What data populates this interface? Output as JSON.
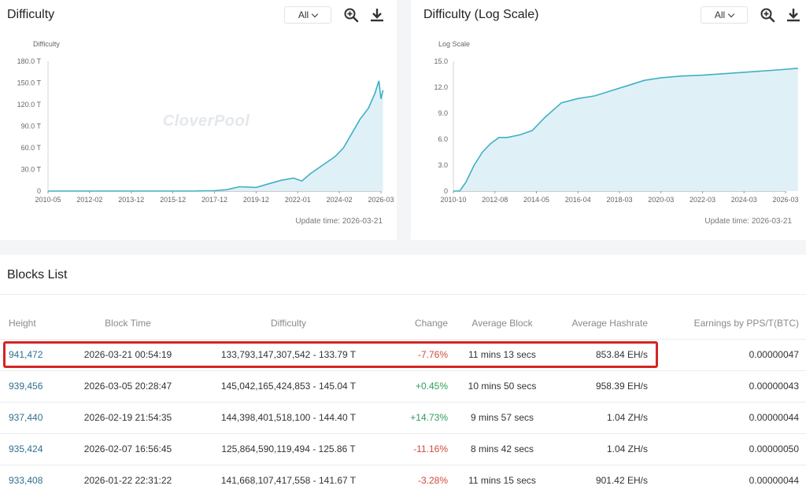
{
  "charts": [
    {
      "title": "Difficulty",
      "range": "All",
      "zoom_icon": "zoom-in-icon",
      "download_icon": "download-icon",
      "update_time": "Update time: 2026-03-21",
      "watermark": "CloverPool",
      "chart_data": {
        "type": "area",
        "ylabel": "Difficulty",
        "y_ticks": [
          "0",
          "30.0 T",
          "60.0 T",
          "90.0 T",
          "120.0 T",
          "150.0 T",
          "180.0 T"
        ],
        "ylim": [
          0,
          180
        ],
        "x_ticks": [
          "2010-05",
          "2012-02",
          "2013-12",
          "2015-12",
          "2017-12",
          "2019-12",
          "2022-01",
          "2024-02",
          "2026-03"
        ],
        "x": [
          0,
          0.5,
          1,
          1.5,
          2,
          2.5,
          3,
          3.5,
          4,
          4.3,
          4.6,
          5,
          5.3,
          5.6,
          5.9,
          6.1,
          6.3,
          6.6,
          6.9,
          7.1,
          7.3,
          7.5,
          7.7,
          7.85,
          7.95,
          8.0,
          8.05
        ],
        "values": [
          0,
          0,
          0,
          0,
          0,
          0,
          0,
          0,
          0.5,
          2,
          6,
          5,
          10,
          15,
          18,
          14,
          24,
          36,
          48,
          60,
          80,
          100,
          115,
          135,
          153,
          128,
          140
        ]
      }
    },
    {
      "title": "Difficulty (Log Scale)",
      "range": "All",
      "zoom_icon": "zoom-in-icon",
      "download_icon": "download-icon",
      "update_time": "Update time: 2026-03-21",
      "watermark": "CloverPool",
      "chart_data": {
        "type": "area",
        "ylabel": "Log Scale",
        "y_ticks": [
          "0",
          "3.0",
          "6.0",
          "9.0",
          "12.0",
          "15.0"
        ],
        "ylim": [
          0,
          15
        ],
        "x_ticks": [
          "2010-10",
          "2012-08",
          "2014-05",
          "2016-04",
          "2018-03",
          "2020-03",
          "2022-03",
          "2024-03",
          "2026-03"
        ],
        "x": [
          0,
          0.15,
          0.3,
          0.5,
          0.7,
          0.9,
          1.1,
          1.3,
          1.6,
          1.9,
          2.2,
          2.6,
          3.0,
          3.4,
          3.8,
          4.2,
          4.6,
          5.0,
          5.5,
          6.0,
          6.6,
          7.2,
          7.8,
          8.3
        ],
        "values": [
          0,
          0,
          1,
          3,
          4.5,
          5.5,
          6.2,
          6.2,
          6.5,
          7,
          8.5,
          10.2,
          10.7,
          11,
          11.6,
          12.2,
          12.8,
          13.1,
          13.3,
          13.4,
          13.6,
          13.8,
          14.0,
          14.2
        ]
      }
    }
  ],
  "blocks": {
    "title": "Blocks List",
    "columns": [
      "Height",
      "Block Time",
      "Difficulty",
      "Change",
      "Average Block",
      "Average Hashrate",
      "Earnings by PPS/T(BTC)"
    ],
    "rows": [
      {
        "height": "941,472",
        "time": "2026-03-21 00:54:19",
        "difficulty": "133,793,147,307,542 - 133.79 T",
        "change": "-7.76%",
        "avg_block": "11 mins 13 secs",
        "hashrate": "853.84 EH/s",
        "earnings": "0.00000047"
      },
      {
        "height": "939,456",
        "time": "2026-03-05 20:28:47",
        "difficulty": "145,042,165,424,853 - 145.04 T",
        "change": "+0.45%",
        "avg_block": "10 mins 50 secs",
        "hashrate": "958.39 EH/s",
        "earnings": "0.00000043"
      },
      {
        "height": "937,440",
        "time": "2026-02-19 21:54:35",
        "difficulty": "144,398,401,518,100 - 144.40 T",
        "change": "+14.73%",
        "avg_block": "9 mins 57 secs",
        "hashrate": "1.04 ZH/s",
        "earnings": "0.00000044"
      },
      {
        "height": "935,424",
        "time": "2026-02-07 16:56:45",
        "difficulty": "125,864,590,119,494 - 125.86 T",
        "change": "-11.16%",
        "avg_block": "8 mins 42 secs",
        "hashrate": "1.04 ZH/s",
        "earnings": "0.00000050"
      },
      {
        "height": "933,408",
        "time": "2026-01-22 22:31:22",
        "difficulty": "141,668,107,417,558 - 141.67 T",
        "change": "-3.28%",
        "avg_block": "11 mins 15 secs",
        "hashrate": "901.42 EH/s",
        "earnings": "0.00000044"
      }
    ]
  },
  "colors": {
    "line": "#3fb0c4",
    "fill": "#dff1f7",
    "highlight": "#d42424",
    "negative": "#d0493b",
    "positive": "#2c9d5a",
    "link": "#2e6f8e"
  }
}
